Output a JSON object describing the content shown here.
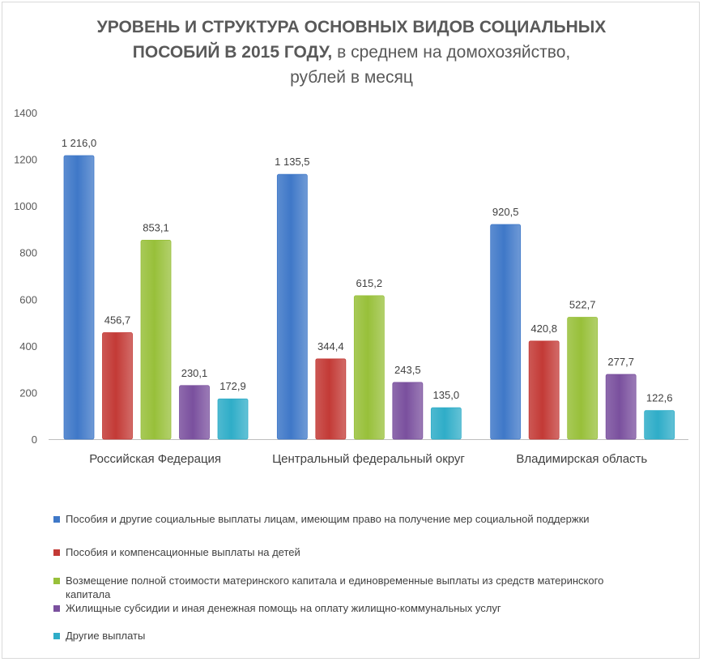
{
  "chart_data": {
    "type": "bar",
    "title_bold_1": "УРОВЕНЬ И СТРУКТУРА ОСНОВНЫХ ВИДОВ СОЦИАЛЬНЫХ",
    "title_bold_2": "ПОСОБИЙ В 2015 ГОДУ,",
    "title_normal_2": " в среднем на домохозяйство,",
    "title_normal_3": "рублей в месяц",
    "categories": [
      "Российская Федерация",
      "Центральный федеральный округ",
      "Владимирская область"
    ],
    "series": [
      {
        "name": "Пособия и другие социальные выплаты лицам, имеющим право на получение мер социальной поддержки",
        "color": "#3f78c8",
        "values": [
          1216.0,
          1135.5,
          920.5
        ],
        "labels": [
          "1 216,0",
          "1 135,5",
          "920,5"
        ]
      },
      {
        "name": "Пособия и компенсационные выплаты на детей",
        "color": "#c33a36",
        "values": [
          456.7,
          344.4,
          420.8
        ],
        "labels": [
          "456,7",
          "344,4",
          "420,8"
        ]
      },
      {
        "name": "Возмещение полной стоимости материнского капитала и единовременные выплаты из средств материнского капитала",
        "color": "#98c03a",
        "values": [
          853.1,
          615.2,
          522.7
        ],
        "labels": [
          "853,1",
          "615,2",
          "522,7"
        ]
      },
      {
        "name": "Жилищные субсидии и иная денежная помощь на оплату жилищно-коммунальных услуг",
        "color": "#7a509e",
        "values": [
          230.1,
          243.5,
          277.7
        ],
        "labels": [
          "230,1",
          "243,5",
          "277,7"
        ]
      },
      {
        "name": "Другие выплаты",
        "color": "#2fadc8",
        "values": [
          172.9,
          135.0,
          122.6
        ],
        "labels": [
          "172,9",
          "135,0",
          "122,6"
        ]
      }
    ],
    "ylim": [
      0,
      1400
    ],
    "yticks": [
      0,
      200,
      400,
      600,
      800,
      1000,
      1200,
      1400
    ],
    "legend_position": "bottom"
  }
}
